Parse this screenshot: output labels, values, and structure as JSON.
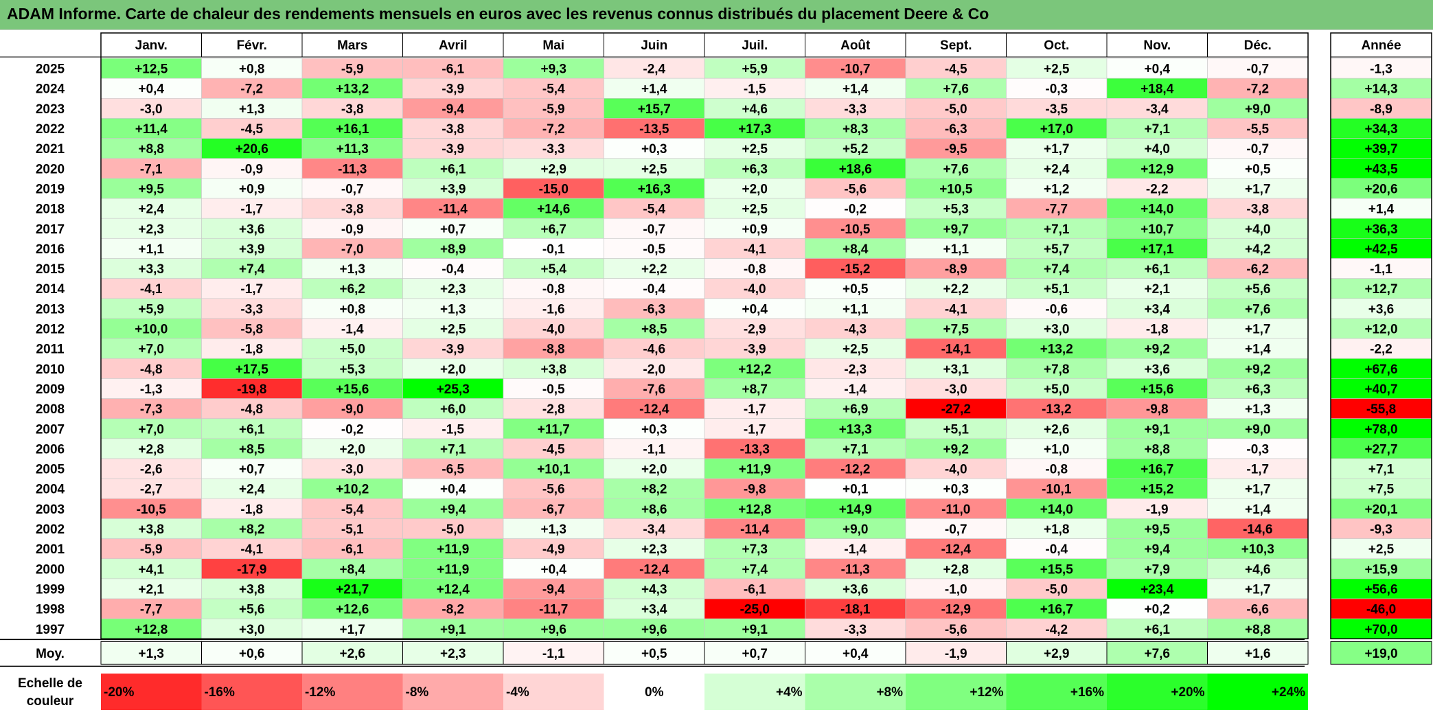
{
  "title": "ADAM Informe. Carte de chaleur des rendements mensuels en euros avec les revenus connus distribués du placement Deere & Co",
  "chart_data": {
    "type": "heatmap",
    "title": "ADAM Informe. Carte de chaleur des rendements mensuels en euros avec les revenus connus distribués du placement Deere & Co",
    "months": [
      "Janv.",
      "Févr.",
      "Mars",
      "Avril",
      "Mai",
      "Juin",
      "Juil.",
      "Août",
      "Sept.",
      "Oct.",
      "Nov.",
      "Déc."
    ],
    "year_header": "Année",
    "rows": [
      {
        "year": "2025",
        "values": [
          "+12,5",
          "+0,8",
          "-5,9",
          "-6,1",
          "+9,3",
          "-2,4",
          "+5,9",
          "-10,7",
          "-4,5",
          "+2,5",
          "+0,4",
          "-0,7"
        ],
        "annual": "-1,3"
      },
      {
        "year": "2024",
        "values": [
          "+0,4",
          "-7,2",
          "+13,2",
          "-3,9",
          "-5,4",
          "+1,4",
          "-1,5",
          "+1,4",
          "+7,6",
          "-0,3",
          "+18,4",
          "-7,2"
        ],
        "annual": "+14,3"
      },
      {
        "year": "2023",
        "values": [
          "-3,0",
          "+1,3",
          "-3,8",
          "-9,4",
          "-5,9",
          "+15,7",
          "+4,6",
          "-3,3",
          "-5,0",
          "-3,5",
          "-3,4",
          "+9,0"
        ],
        "annual": "-8,9"
      },
      {
        "year": "2022",
        "values": [
          "+11,4",
          "-4,5",
          "+16,1",
          "-3,8",
          "-7,2",
          "-13,5",
          "+17,3",
          "+8,3",
          "-6,3",
          "+17,0",
          "+7,1",
          "-5,5"
        ],
        "annual": "+34,3"
      },
      {
        "year": "2021",
        "values": [
          "+8,8",
          "+20,6",
          "+11,3",
          "-3,9",
          "-3,3",
          "+0,3",
          "+2,5",
          "+5,2",
          "-9,5",
          "+1,7",
          "+4,0",
          "-0,7"
        ],
        "annual": "+39,7"
      },
      {
        "year": "2020",
        "values": [
          "-7,1",
          "-0,9",
          "-11,3",
          "+6,1",
          "+2,9",
          "+2,5",
          "+6,3",
          "+18,6",
          "+7,6",
          "+2,4",
          "+12,9",
          "+0,5"
        ],
        "annual": "+43,5"
      },
      {
        "year": "2019",
        "values": [
          "+9,5",
          "+0,9",
          "-0,7",
          "+3,9",
          "-15,0",
          "+16,3",
          "+2,0",
          "-5,6",
          "+10,5",
          "+1,2",
          "-2,2",
          "+1,7"
        ],
        "annual": "+20,6"
      },
      {
        "year": "2018",
        "values": [
          "+2,4",
          "-1,7",
          "-3,8",
          "-11,4",
          "+14,6",
          "-5,4",
          "+2,5",
          "-0,2",
          "+5,3",
          "-7,7",
          "+14,0",
          "-3,8"
        ],
        "annual": "+1,4"
      },
      {
        "year": "2017",
        "values": [
          "+2,3",
          "+3,6",
          "-0,9",
          "+0,7",
          "+6,7",
          "-0,7",
          "+0,9",
          "-10,5",
          "+9,7",
          "+7,1",
          "+10,7",
          "+4,0"
        ],
        "annual": "+36,3"
      },
      {
        "year": "2016",
        "values": [
          "+1,1",
          "+3,9",
          "-7,0",
          "+8,9",
          "-0,1",
          "-0,5",
          "-4,1",
          "+8,4",
          "+1,1",
          "+5,7",
          "+17,1",
          "+4,2"
        ],
        "annual": "+42,5"
      },
      {
        "year": "2015",
        "values": [
          "+3,3",
          "+7,4",
          "+1,3",
          "-0,4",
          "+5,4",
          "+2,2",
          "-0,8",
          "-15,2",
          "-8,9",
          "+7,4",
          "+6,1",
          "-6,2"
        ],
        "annual": "-1,1"
      },
      {
        "year": "2014",
        "values": [
          "-4,1",
          "-1,7",
          "+6,2",
          "+2,3",
          "-0,8",
          "-0,4",
          "-4,0",
          "+0,5",
          "+2,2",
          "+5,1",
          "+2,1",
          "+5,6"
        ],
        "annual": "+12,7"
      },
      {
        "year": "2013",
        "values": [
          "+5,9",
          "-3,3",
          "+0,8",
          "+1,3",
          "-1,6",
          "-6,3",
          "+0,4",
          "+1,1",
          "-4,1",
          "-0,6",
          "+3,4",
          "+7,6"
        ],
        "annual": "+3,6"
      },
      {
        "year": "2012",
        "values": [
          "+10,0",
          "-5,8",
          "-1,4",
          "+2,5",
          "-4,0",
          "+8,5",
          "-2,9",
          "-4,3",
          "+7,5",
          "+3,0",
          "-1,8",
          "+1,7"
        ],
        "annual": "+12,0"
      },
      {
        "year": "2011",
        "values": [
          "+7,0",
          "-1,8",
          "+5,0",
          "-3,9",
          "-8,8",
          "-4,6",
          "-3,9",
          "+2,5",
          "-14,1",
          "+13,2",
          "+9,2",
          "+1,4"
        ],
        "annual": "-2,2"
      },
      {
        "year": "2010",
        "values": [
          "-4,8",
          "+17,5",
          "+5,3",
          "+2,0",
          "+3,8",
          "-2,0",
          "+12,2",
          "-2,3",
          "+3,1",
          "+7,8",
          "+3,6",
          "+9,2"
        ],
        "annual": "+67,6"
      },
      {
        "year": "2009",
        "values": [
          "-1,3",
          "-19,8",
          "+15,6",
          "+25,3",
          "-0,5",
          "-7,6",
          "+8,7",
          "-1,4",
          "-3,0",
          "+5,0",
          "+15,6",
          "+6,3"
        ],
        "annual": "+40,7"
      },
      {
        "year": "2008",
        "values": [
          "-7,3",
          "-4,8",
          "-9,0",
          "+6,0",
          "-2,8",
          "-12,4",
          "-1,7",
          "+6,9",
          "-27,2",
          "-13,2",
          "-9,8",
          "+1,3"
        ],
        "annual": "-55,8"
      },
      {
        "year": "2007",
        "values": [
          "+7,0",
          "+6,1",
          "-0,2",
          "-1,5",
          "+11,7",
          "+0,3",
          "-1,7",
          "+13,3",
          "+5,1",
          "+2,6",
          "+9,1",
          "+9,0"
        ],
        "annual": "+78,0"
      },
      {
        "year": "2006",
        "values": [
          "+2,8",
          "+8,5",
          "+2,0",
          "+7,1",
          "-4,5",
          "-1,1",
          "-13,3",
          "+7,1",
          "+9,2",
          "+1,0",
          "+8,8",
          "-0,3"
        ],
        "annual": "+27,7"
      },
      {
        "year": "2005",
        "values": [
          "-2,6",
          "+0,7",
          "-3,0",
          "-6,5",
          "+10,1",
          "+2,0",
          "+11,9",
          "-12,2",
          "-4,0",
          "-0,8",
          "+16,7",
          "-1,7"
        ],
        "annual": "+7,1"
      },
      {
        "year": "2004",
        "values": [
          "-2,7",
          "+2,4",
          "+10,2",
          "+0,4",
          "-5,6",
          "+8,2",
          "-9,8",
          "+0,1",
          "+0,3",
          "-10,1",
          "+15,2",
          "+1,7"
        ],
        "annual": "+7,5"
      },
      {
        "year": "2003",
        "values": [
          "-10,5",
          "-1,8",
          "-5,4",
          "+9,4",
          "-6,7",
          "+8,6",
          "+12,8",
          "+14,9",
          "-11,0",
          "+14,0",
          "-1,9",
          "+1,4"
        ],
        "annual": "+20,1"
      },
      {
        "year": "2002",
        "values": [
          "+3,8",
          "+8,2",
          "-5,1",
          "-5,0",
          "+1,3",
          "-3,4",
          "-11,4",
          "+9,0",
          "-0,7",
          "+1,8",
          "+9,5",
          "-14,6"
        ],
        "annual": "-9,3"
      },
      {
        "year": "2001",
        "values": [
          "-5,9",
          "-4,1",
          "-6,1",
          "+11,9",
          "-4,9",
          "+2,3",
          "+7,3",
          "-1,4",
          "-12,4",
          "-0,4",
          "+9,4",
          "+10,3"
        ],
        "annual": "+2,5"
      },
      {
        "year": "2000",
        "values": [
          "+4,1",
          "-17,9",
          "+8,4",
          "+11,9",
          "+0,4",
          "-12,4",
          "+7,4",
          "-11,3",
          "+2,8",
          "+15,5",
          "+7,9",
          "+4,6"
        ],
        "annual": "+15,9"
      },
      {
        "year": "1999",
        "values": [
          "+2,1",
          "+3,8",
          "+21,7",
          "+12,4",
          "-9,4",
          "+4,3",
          "-6,1",
          "+3,6",
          "-1,0",
          "-5,0",
          "+23,4",
          "+1,7"
        ],
        "annual": "+56,6"
      },
      {
        "year": "1998",
        "values": [
          "-7,7",
          "+5,6",
          "+12,6",
          "-8,2",
          "-11,7",
          "+3,4",
          "-25,0",
          "-18,1",
          "-12,9",
          "+16,7",
          "+0,2",
          "-6,6"
        ],
        "annual": "-46,0"
      },
      {
        "year": "1997",
        "values": [
          "+12,8",
          "+3,0",
          "+1,7",
          "+9,1",
          "+9,6",
          "+9,6",
          "+9,1",
          "-3,3",
          "-5,6",
          "-4,2",
          "+6,1",
          "+8,8"
        ],
        "annual": "+70,0"
      }
    ],
    "average": {
      "label": "Moy.",
      "values": [
        "+1,3",
        "+0,6",
        "+2,6",
        "+2,3",
        "-1,1",
        "+0,5",
        "+0,7",
        "+0,4",
        "-1,9",
        "+2,9",
        "+7,6",
        "+1,6"
      ],
      "annual": "+19,0"
    },
    "scale": {
      "label_line1": "Echelle de",
      "label_line2": "couleur",
      "steps": [
        {
          "label": "-20%",
          "value": -20,
          "align": "left"
        },
        {
          "label": "-16%",
          "value": -16,
          "align": "left"
        },
        {
          "label": "-12%",
          "value": -12,
          "align": "left"
        },
        {
          "label": "-8%",
          "value": -8,
          "align": "left"
        },
        {
          "label": "-4%",
          "value": -4,
          "align": "left"
        },
        {
          "label": "0%",
          "value": 0,
          "align": "center"
        },
        {
          "label": "+4%",
          "value": 4,
          "align": "right"
        },
        {
          "label": "+8%",
          "value": 8,
          "align": "right"
        },
        {
          "label": "+12%",
          "value": 12,
          "align": "right"
        },
        {
          "label": "+16%",
          "value": 16,
          "align": "right"
        },
        {
          "label": "+20%",
          "value": 20,
          "align": "right"
        },
        {
          "label": "+24%",
          "value": 24,
          "align": "right"
        }
      ]
    },
    "colors": {
      "title_bar": "#7bc67b",
      "neg_extreme": "#ff0000",
      "neutral": "#ffffff",
      "pos_extreme": "#00ff00"
    }
  }
}
